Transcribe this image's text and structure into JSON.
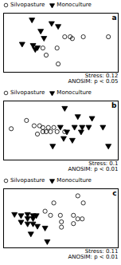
{
  "chart_data": [
    {
      "type": "scatter",
      "xlim": [
        0,
        1.05
      ],
      "ylim": [
        0,
        1
      ],
      "tick_labels": false,
      "legend": "upper left",
      "annotations": [
        "a",
        "Stress: 0.12\nANOSIM: p < 0.05"
      ],
      "series": [
        {
          "name": "Silvopasture",
          "marker": "open circle",
          "color": "black",
          "x": [
            0.56,
            0.61,
            0.63,
            0.73,
            0.96,
            0.36,
            0.49,
            0.39,
            0.5
          ],
          "values": [
            0.6,
            0.6,
            0.57,
            0.6,
            0.6,
            0.41,
            0.41,
            0.29,
            0.14
          ]
        },
        {
          "name": "Monoculture",
          "marker": "triangle-down",
          "color": "black",
          "x": [
            0.26,
            0.44,
            0.5,
            0.34,
            0.37,
            0.17,
            0.27,
            0.31,
            0.29
          ],
          "values": [
            0.89,
            0.83,
            0.78,
            0.7,
            0.58,
            0.48,
            0.46,
            0.42,
            0.39
          ]
        }
      ]
    },
    {
      "type": "scatter",
      "xlim": [
        0,
        1.05
      ],
      "ylim": [
        0,
        1
      ],
      "tick_labels": false,
      "legend": "upper left",
      "annotations": [
        "b",
        "Stress: 0.1\nANOSIM: p < 0.01"
      ],
      "series": [
        {
          "name": "Silvopasture",
          "marker": "open circle",
          "color": "black",
          "x": [
            0.07,
            0.21,
            0.28,
            0.33,
            0.36,
            0.41,
            0.46,
            0.36,
            0.39,
            0.43,
            0.49,
            0.56,
            0.31
          ],
          "values": [
            0.53,
            0.67,
            0.58,
            0.58,
            0.55,
            0.55,
            0.55,
            0.48,
            0.48,
            0.48,
            0.48,
            0.48,
            0.44
          ]
        },
        {
          "name": "Monoculture",
          "marker": "triangle-down",
          "color": "black",
          "x": [
            0.56,
            0.68,
            0.81,
            0.52,
            0.65,
            0.72,
            0.78,
            0.91,
            0.58,
            0.71,
            0.55,
            0.63,
            0.45,
            0.96
          ],
          "values": [
            0.88,
            0.74,
            0.71,
            0.56,
            0.56,
            0.56,
            0.56,
            0.56,
            0.48,
            0.48,
            0.37,
            0.34,
            0.24,
            0.24
          ]
        }
      ]
    },
    {
      "type": "scatter",
      "xlim": [
        0,
        1.05
      ],
      "ylim": [
        0,
        1
      ],
      "tick_labels": false,
      "legend": "upper left",
      "annotations": [
        "c",
        "Stress: 0.11\nANOSIM: p < 0.01"
      ],
      "series": [
        {
          "name": "Silvopasture",
          "marker": "open circle",
          "color": "black",
          "x": [
            0.68,
            0.46,
            0.73,
            0.38,
            0.43,
            0.52,
            0.64,
            0.68,
            0.72,
            0.53,
            0.64,
            0.53
          ],
          "values": [
            0.88,
            0.76,
            0.76,
            0.62,
            0.55,
            0.55,
            0.55,
            0.49,
            0.49,
            0.44,
            0.41,
            0.35
          ]
        },
        {
          "name": "Monoculture",
          "marker": "triangle-down",
          "color": "black",
          "x": [
            0.1,
            0.16,
            0.22,
            0.27,
            0.3,
            0.22,
            0.27,
            0.16,
            0.22,
            0.27,
            0.31,
            0.38,
            0.25,
            0.4
          ],
          "values": [
            0.57,
            0.55,
            0.57,
            0.55,
            0.55,
            0.5,
            0.5,
            0.44,
            0.41,
            0.41,
            0.37,
            0.34,
            0.24,
            0.11
          ]
        }
      ]
    }
  ]
}
